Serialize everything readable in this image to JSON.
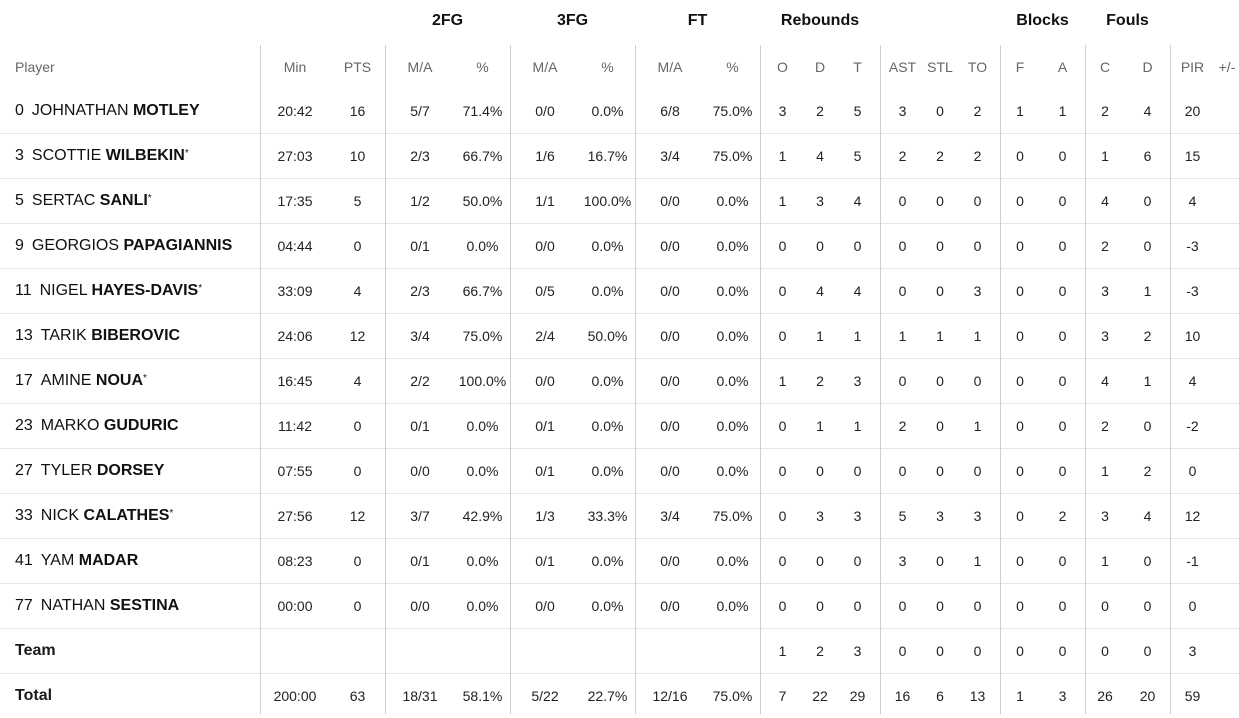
{
  "groups": {
    "fg2": "2FG",
    "fg3": "3FG",
    "ft": "FT",
    "rebounds": "Rebounds",
    "blocks": "Blocks",
    "fouls": "Fouls"
  },
  "columns": [
    "Player",
    "Min",
    "PTS",
    "M/A",
    "%",
    "M/A",
    "%",
    "M/A",
    "%",
    "O",
    "D",
    "T",
    "AST",
    "STL",
    "TO",
    "F",
    "A",
    "C",
    "D",
    "PIR",
    "+/-"
  ],
  "players": [
    {
      "num": "0",
      "first": "JOHNATHAN",
      "last": "MOTLEY",
      "star": "",
      "min": "20:42",
      "pts": "16",
      "fg2": "5/7",
      "fg2p": "71.4%",
      "fg3": "0/0",
      "fg3p": "0.0%",
      "ft": "6/8",
      "ftp": "75.0%",
      "o": "3",
      "d": "2",
      "t": "5",
      "ast": "3",
      "stl": "0",
      "to": "2",
      "bf": "1",
      "ba": "1",
      "fc": "2",
      "fd": "4",
      "pir": "20",
      "pm": ""
    },
    {
      "num": "3",
      "first": "SCOTTIE",
      "last": "WILBEKIN",
      "star": "*",
      "min": "27:03",
      "pts": "10",
      "fg2": "2/3",
      "fg2p": "66.7%",
      "fg3": "1/6",
      "fg3p": "16.7%",
      "ft": "3/4",
      "ftp": "75.0%",
      "o": "1",
      "d": "4",
      "t": "5",
      "ast": "2",
      "stl": "2",
      "to": "2",
      "bf": "0",
      "ba": "0",
      "fc": "1",
      "fd": "6",
      "pir": "15",
      "pm": ""
    },
    {
      "num": "5",
      "first": "SERTAC",
      "last": "SANLI",
      "star": "*",
      "min": "17:35",
      "pts": "5",
      "fg2": "1/2",
      "fg2p": "50.0%",
      "fg3": "1/1",
      "fg3p": "100.0%",
      "ft": "0/0",
      "ftp": "0.0%",
      "o": "1",
      "d": "3",
      "t": "4",
      "ast": "0",
      "stl": "0",
      "to": "0",
      "bf": "0",
      "ba": "0",
      "fc": "4",
      "fd": "0",
      "pir": "4",
      "pm": ""
    },
    {
      "num": "9",
      "first": "GEORGIOS",
      "last": "PAPAGIANNIS",
      "star": "",
      "min": "04:44",
      "pts": "0",
      "fg2": "0/1",
      "fg2p": "0.0%",
      "fg3": "0/0",
      "fg3p": "0.0%",
      "ft": "0/0",
      "ftp": "0.0%",
      "o": "0",
      "d": "0",
      "t": "0",
      "ast": "0",
      "stl": "0",
      "to": "0",
      "bf": "0",
      "ba": "0",
      "fc": "2",
      "fd": "0",
      "pir": "-3",
      "pm": ""
    },
    {
      "num": "11",
      "first": "NIGEL",
      "last": "HAYES-DAVIS",
      "star": "*",
      "min": "33:09",
      "pts": "4",
      "fg2": "2/3",
      "fg2p": "66.7%",
      "fg3": "0/5",
      "fg3p": "0.0%",
      "ft": "0/0",
      "ftp": "0.0%",
      "o": "0",
      "d": "4",
      "t": "4",
      "ast": "0",
      "stl": "0",
      "to": "3",
      "bf": "0",
      "ba": "0",
      "fc": "3",
      "fd": "1",
      "pir": "-3",
      "pm": ""
    },
    {
      "num": "13",
      "first": "TARIK",
      "last": "BIBEROVIC",
      "star": "",
      "min": "24:06",
      "pts": "12",
      "fg2": "3/4",
      "fg2p": "75.0%",
      "fg3": "2/4",
      "fg3p": "50.0%",
      "ft": "0/0",
      "ftp": "0.0%",
      "o": "0",
      "d": "1",
      "t": "1",
      "ast": "1",
      "stl": "1",
      "to": "1",
      "bf": "0",
      "ba": "0",
      "fc": "3",
      "fd": "2",
      "pir": "10",
      "pm": ""
    },
    {
      "num": "17",
      "first": "AMINE",
      "last": "NOUA",
      "star": "*",
      "min": "16:45",
      "pts": "4",
      "fg2": "2/2",
      "fg2p": "100.0%",
      "fg3": "0/0",
      "fg3p": "0.0%",
      "ft": "0/0",
      "ftp": "0.0%",
      "o": "1",
      "d": "2",
      "t": "3",
      "ast": "0",
      "stl": "0",
      "to": "0",
      "bf": "0",
      "ba": "0",
      "fc": "4",
      "fd": "1",
      "pir": "4",
      "pm": ""
    },
    {
      "num": "23",
      "first": "MARKO",
      "last": "GUDURIC",
      "star": "",
      "min": "11:42",
      "pts": "0",
      "fg2": "0/1",
      "fg2p": "0.0%",
      "fg3": "0/1",
      "fg3p": "0.0%",
      "ft": "0/0",
      "ftp": "0.0%",
      "o": "0",
      "d": "1",
      "t": "1",
      "ast": "2",
      "stl": "0",
      "to": "1",
      "bf": "0",
      "ba": "0",
      "fc": "2",
      "fd": "0",
      "pir": "-2",
      "pm": ""
    },
    {
      "num": "27",
      "first": "TYLER",
      "last": "DORSEY",
      "star": "",
      "min": "07:55",
      "pts": "0",
      "fg2": "0/0",
      "fg2p": "0.0%",
      "fg3": "0/1",
      "fg3p": "0.0%",
      "ft": "0/0",
      "ftp": "0.0%",
      "o": "0",
      "d": "0",
      "t": "0",
      "ast": "0",
      "stl": "0",
      "to": "0",
      "bf": "0",
      "ba": "0",
      "fc": "1",
      "fd": "2",
      "pir": "0",
      "pm": ""
    },
    {
      "num": "33",
      "first": "NICK",
      "last": "CALATHES",
      "star": "*",
      "min": "27:56",
      "pts": "12",
      "fg2": "3/7",
      "fg2p": "42.9%",
      "fg3": "1/3",
      "fg3p": "33.3%",
      "ft": "3/4",
      "ftp": "75.0%",
      "o": "0",
      "d": "3",
      "t": "3",
      "ast": "5",
      "stl": "3",
      "to": "3",
      "bf": "0",
      "ba": "2",
      "fc": "3",
      "fd": "4",
      "pir": "12",
      "pm": ""
    },
    {
      "num": "41",
      "first": "YAM",
      "last": "MADAR",
      "star": "",
      "min": "08:23",
      "pts": "0",
      "fg2": "0/1",
      "fg2p": "0.0%",
      "fg3": "0/1",
      "fg3p": "0.0%",
      "ft": "0/0",
      "ftp": "0.0%",
      "o": "0",
      "d": "0",
      "t": "0",
      "ast": "3",
      "stl": "0",
      "to": "1",
      "bf": "0",
      "ba": "0",
      "fc": "1",
      "fd": "0",
      "pir": "-1",
      "pm": ""
    },
    {
      "num": "77",
      "first": "NATHAN",
      "last": "SESTINA",
      "star": "",
      "min": "00:00",
      "pts": "0",
      "fg2": "0/0",
      "fg2p": "0.0%",
      "fg3": "0/0",
      "fg3p": "0.0%",
      "ft": "0/0",
      "ftp": "0.0%",
      "o": "0",
      "d": "0",
      "t": "0",
      "ast": "0",
      "stl": "0",
      "to": "0",
      "bf": "0",
      "ba": "0",
      "fc": "0",
      "fd": "0",
      "pir": "0",
      "pm": ""
    }
  ],
  "team": {
    "label": "Team",
    "min": "",
    "pts": "",
    "fg2": "",
    "fg2p": "",
    "fg3": "",
    "fg3p": "",
    "ft": "",
    "ftp": "",
    "o": "1",
    "d": "2",
    "t": "3",
    "ast": "0",
    "stl": "0",
    "to": "0",
    "bf": "0",
    "ba": "0",
    "fc": "0",
    "fd": "0",
    "pir": "3",
    "pm": ""
  },
  "total": {
    "label": "Total",
    "min": "200:00",
    "pts": "63",
    "fg2": "18/31",
    "fg2p": "58.1%",
    "fg3": "5/22",
    "fg3p": "22.7%",
    "ft": "12/16",
    "ftp": "75.0%",
    "o": "7",
    "d": "22",
    "t": "29",
    "ast": "16",
    "stl": "6",
    "to": "13",
    "bf": "1",
    "ba": "3",
    "fc": "26",
    "fd": "20",
    "pir": "59",
    "pm": ""
  }
}
